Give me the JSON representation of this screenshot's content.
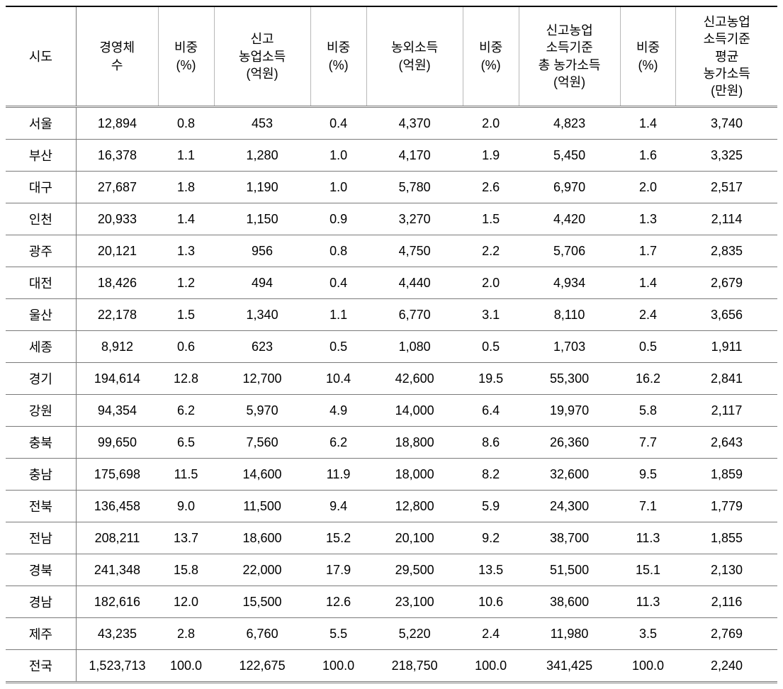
{
  "table": {
    "type": "table",
    "background_color": "#ffffff",
    "text_color": "#000000",
    "border_top_color": "#000000",
    "border_color": "#7a7a7a",
    "header_fontsize": 18,
    "cell_fontsize": 18,
    "columns": [
      {
        "key": "sido",
        "label": "시도",
        "align": "center"
      },
      {
        "key": "count",
        "label": "경영체\n수",
        "align": "center"
      },
      {
        "key": "pct1",
        "label": "비중\n(%)",
        "align": "center"
      },
      {
        "key": "agri_income",
        "label": "신고\n농업소득\n(억원)",
        "align": "center"
      },
      {
        "key": "pct2",
        "label": "비중\n(%)",
        "align": "center"
      },
      {
        "key": "nonagri_income",
        "label": "농외소득\n(억원)",
        "align": "center"
      },
      {
        "key": "pct3",
        "label": "비중\n(%)",
        "align": "center"
      },
      {
        "key": "total_income",
        "label": "신고농업\n소득기준\n총 농가소득\n(억원)",
        "align": "center"
      },
      {
        "key": "pct4",
        "label": "비중\n(%)",
        "align": "center"
      },
      {
        "key": "avg_income",
        "label": "신고농업\n소득기준\n평균\n농가소득\n(만원)",
        "align": "center"
      }
    ],
    "rows": [
      [
        "서울",
        "12,894",
        "0.8",
        "453",
        "0.4",
        "4,370",
        "2.0",
        "4,823",
        "1.4",
        "3,740"
      ],
      [
        "부산",
        "16,378",
        "1.1",
        "1,280",
        "1.0",
        "4,170",
        "1.9",
        "5,450",
        "1.6",
        "3,325"
      ],
      [
        "대구",
        "27,687",
        "1.8",
        "1,190",
        "1.0",
        "5,780",
        "2.6",
        "6,970",
        "2.0",
        "2,517"
      ],
      [
        "인천",
        "20,933",
        "1.4",
        "1,150",
        "0.9",
        "3,270",
        "1.5",
        "4,420",
        "1.3",
        "2,114"
      ],
      [
        "광주",
        "20,121",
        "1.3",
        "956",
        "0.8",
        "4,750",
        "2.2",
        "5,706",
        "1.7",
        "2,835"
      ],
      [
        "대전",
        "18,426",
        "1.2",
        "494",
        "0.4",
        "4,440",
        "2.0",
        "4,934",
        "1.4",
        "2,679"
      ],
      [
        "울산",
        "22,178",
        "1.5",
        "1,340",
        "1.1",
        "6,770",
        "3.1",
        "8,110",
        "2.4",
        "3,656"
      ],
      [
        "세종",
        "8,912",
        "0.6",
        "623",
        "0.5",
        "1,080",
        "0.5",
        "1,703",
        "0.5",
        "1,911"
      ],
      [
        "경기",
        "194,614",
        "12.8",
        "12,700",
        "10.4",
        "42,600",
        "19.5",
        "55,300",
        "16.2",
        "2,841"
      ],
      [
        "강원",
        "94,354",
        "6.2",
        "5,970",
        "4.9",
        "14,000",
        "6.4",
        "19,970",
        "5.8",
        "2,117"
      ],
      [
        "충북",
        "99,650",
        "6.5",
        "7,560",
        "6.2",
        "18,800",
        "8.6",
        "26,360",
        "7.7",
        "2,643"
      ],
      [
        "충남",
        "175,698",
        "11.5",
        "14,600",
        "11.9",
        "18,000",
        "8.2",
        "32,600",
        "9.5",
        "1,859"
      ],
      [
        "전북",
        "136,458",
        "9.0",
        "11,500",
        "9.4",
        "12,800",
        "5.9",
        "24,300",
        "7.1",
        "1,779"
      ],
      [
        "전남",
        "208,211",
        "13.7",
        "18,600",
        "15.2",
        "20,100",
        "9.2",
        "38,700",
        "11.3",
        "1,855"
      ],
      [
        "경북",
        "241,348",
        "15.8",
        "22,000",
        "17.9",
        "29,500",
        "13.5",
        "51,500",
        "15.1",
        "2,130"
      ],
      [
        "경남",
        "182,616",
        "12.0",
        "15,500",
        "12.6",
        "23,100",
        "10.6",
        "38,600",
        "11.3",
        "2,116"
      ],
      [
        "제주",
        "43,235",
        "2.8",
        "6,760",
        "5.5",
        "5,220",
        "2.4",
        "11,980",
        "3.5",
        "2,769"
      ],
      [
        "전국",
        "1,523,713",
        "100.0",
        "122,675",
        "100.0",
        "218,750",
        "100.0",
        "341,425",
        "100.0",
        "2,240"
      ]
    ]
  }
}
